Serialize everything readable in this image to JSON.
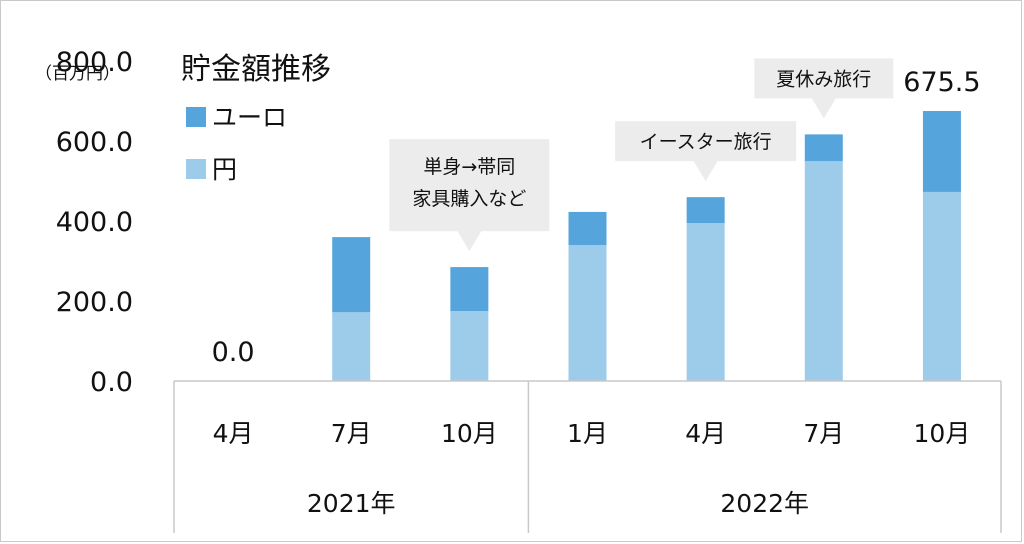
{
  "chart_data": {
    "type": "bar",
    "stacked": true,
    "title": "貯金額推移",
    "unit_label": "（百万円）",
    "categories": [
      "4月",
      "7月",
      "10月",
      "1月",
      "4月",
      "7月",
      "10月"
    ],
    "year_groups": [
      {
        "label": "2021年",
        "count": 3
      },
      {
        "label": "2022年",
        "count": 4
      }
    ],
    "series": [
      {
        "name": "円",
        "color": "#9dcbea",
        "values": [
          0,
          172,
          175,
          340,
          395,
          550,
          473
        ]
      },
      {
        "name": "ユーロ",
        "color": "#56a4dc",
        "values": [
          0,
          188,
          110,
          83,
          65,
          67,
          202.5
        ]
      }
    ],
    "legend_order": [
      "ユーロ",
      "円"
    ],
    "legend_position": "top-left",
    "ylim": [
      0,
      800
    ],
    "yticks": [
      "0.0",
      "200.0",
      "400.0",
      "600.0",
      "800.0"
    ],
    "ytick_values": [
      0,
      200,
      400,
      600,
      800
    ],
    "data_labels": [
      {
        "index": 0,
        "text": "0.0"
      },
      {
        "index": 6,
        "text": "675.5"
      }
    ],
    "callouts": [
      {
        "index": 2,
        "lines": [
          "単身→帯同",
          "家具購入など"
        ]
      },
      {
        "index": 4,
        "lines": [
          "イースター旅行"
        ]
      },
      {
        "index": 5,
        "lines": [
          "夏休み旅行"
        ]
      }
    ],
    "grid": false
  }
}
